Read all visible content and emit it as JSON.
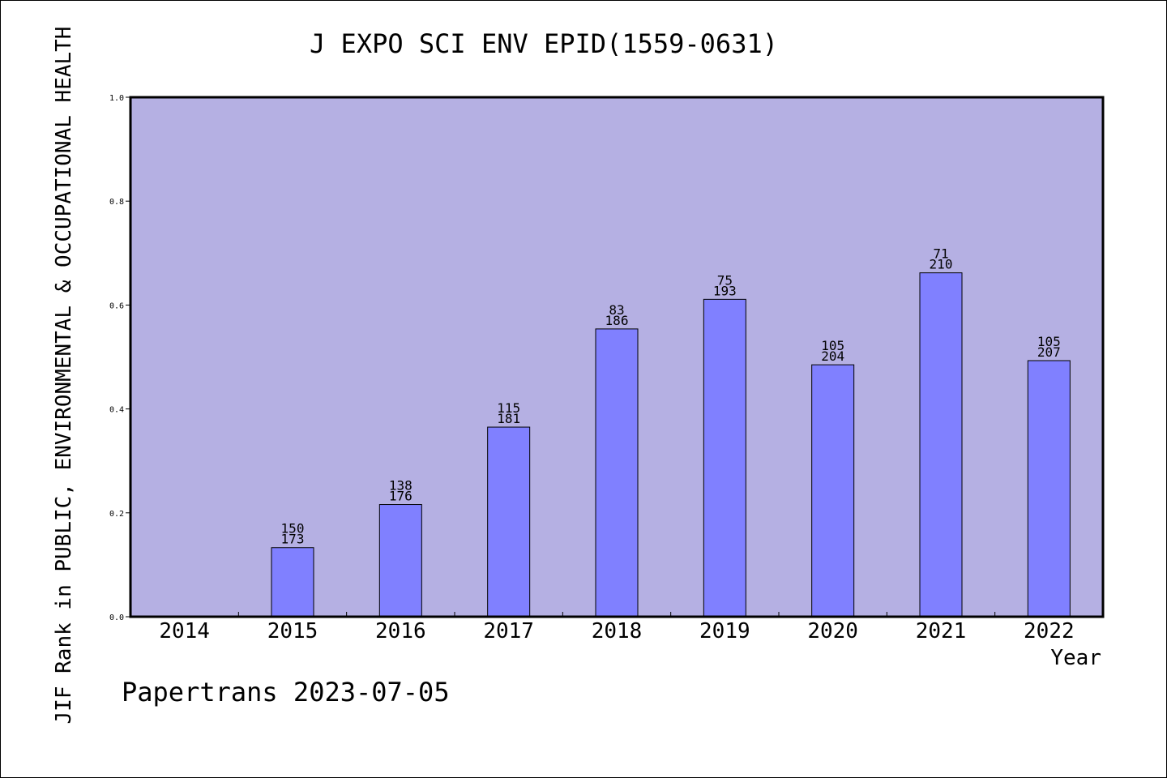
{
  "chart_data": {
    "type": "bar",
    "title": "J EXPO SCI ENV EPID(1559-0631)",
    "xlabel": "Year",
    "ylabel": "JIF Rank in PUBLIC, ENVIRONMENTAL & OCCUPATIONAL HEALTH",
    "ylim": [
      0.0,
      1.0
    ],
    "yticks": [
      "0.0",
      "0.2",
      "0.4",
      "0.6",
      "0.8",
      "1.0"
    ],
    "categories": [
      "2014",
      "2015",
      "2016",
      "2017",
      "2018",
      "2019",
      "2020",
      "2021",
      "2022"
    ],
    "values": [
      null,
      0.133,
      0.216,
      0.365,
      0.554,
      0.611,
      0.485,
      0.662,
      0.493
    ],
    "rank_labels": [
      null,
      "150",
      "138",
      "115",
      "83",
      "75",
      "105",
      "71",
      "105"
    ],
    "total_labels": [
      null,
      "173",
      "176",
      "181",
      "186",
      "193",
      "204",
      "210",
      "207"
    ],
    "grid": false,
    "colors": {
      "plot_background": "#b5b0e3",
      "bar": "#8080ff"
    }
  },
  "footer_note": "Papertrans 2023-07-05"
}
